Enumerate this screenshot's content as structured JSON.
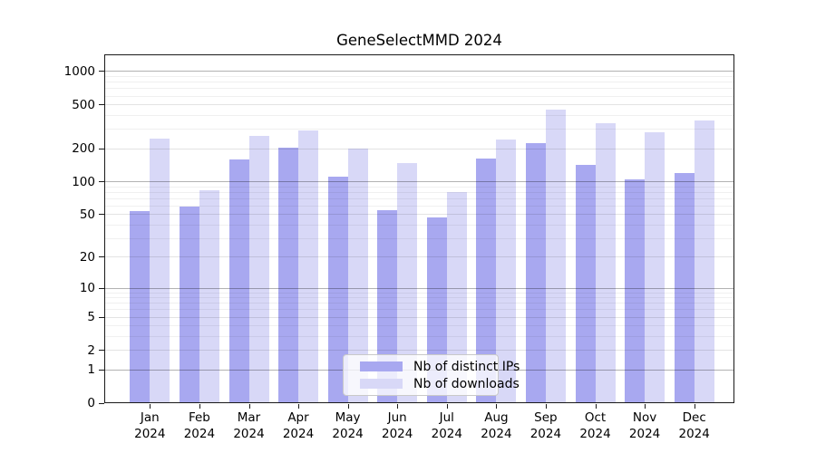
{
  "chart_data": {
    "type": "bar",
    "title": "GeneSelectMMD 2024",
    "categories": [
      "Jan",
      "Feb",
      "Mar",
      "Apr",
      "May",
      "Jun",
      "Jul",
      "Aug",
      "Sep",
      "Oct",
      "Nov",
      "Dec"
    ],
    "category_year": "2024",
    "series": [
      {
        "name": "Nb of distinct IPs",
        "color": "#a8a8f0",
        "values": [
          54,
          59,
          160,
          203,
          111,
          55,
          47,
          162,
          225,
          143,
          104,
          120
        ]
      },
      {
        "name": "Nb of downloads",
        "color": "#d8d8f7",
        "values": [
          245,
          84,
          260,
          291,
          200,
          148,
          81,
          242,
          455,
          341,
          281,
          358
        ]
      }
    ],
    "y_ticks": [
      0,
      1,
      2,
      5,
      10,
      20,
      50,
      100,
      200,
      500,
      1000
    ],
    "y_scale": "log10(1 + value)",
    "ylim": [
      0,
      1450
    ],
    "xlabel": "",
    "ylabel": "",
    "grid": true,
    "legend_position": "lower center"
  }
}
